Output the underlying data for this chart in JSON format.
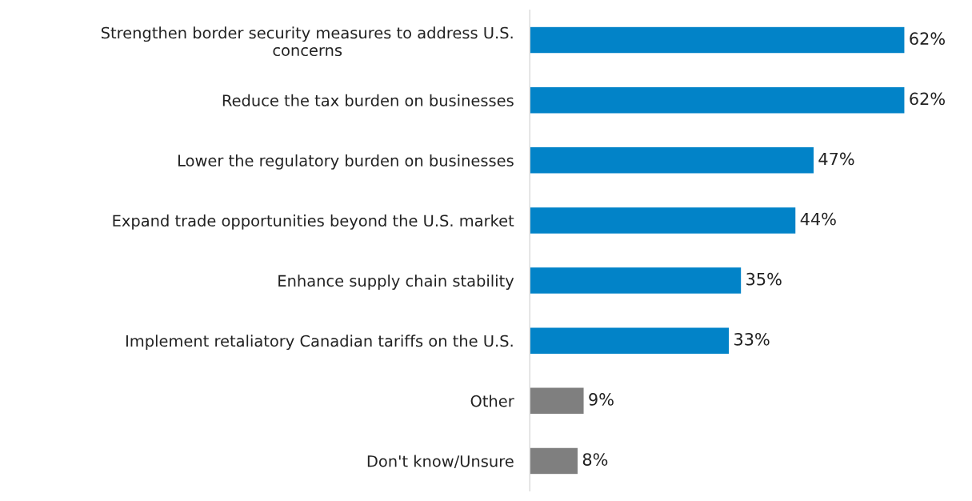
{
  "chart_data": {
    "type": "bar",
    "orientation": "horizontal",
    "categories": [
      "Strengthen border security measures to address U.S. concerns",
      "Reduce the tax burden on businesses",
      "Lower the regulatory burden on businesses",
      "Expand trade opportunities beyond the U.S. market",
      "Enhance supply chain stability",
      "Implement retaliatory Canadian tariffs on the U.S.",
      "Other",
      "Don't know/Unsure"
    ],
    "values": [
      62,
      62,
      47,
      44,
      35,
      33,
      9,
      8
    ],
    "colors": [
      "#0283c8",
      "#0283c8",
      "#0283c8",
      "#0283c8",
      "#0283c8",
      "#0283c8",
      "#7f7f7f",
      "#7f7f7f"
    ],
    "value_labels": [
      "62%",
      "62%",
      "47%",
      "44%",
      "35%",
      "33%",
      "9%",
      "8%"
    ],
    "grid": false,
    "legend": false
  }
}
